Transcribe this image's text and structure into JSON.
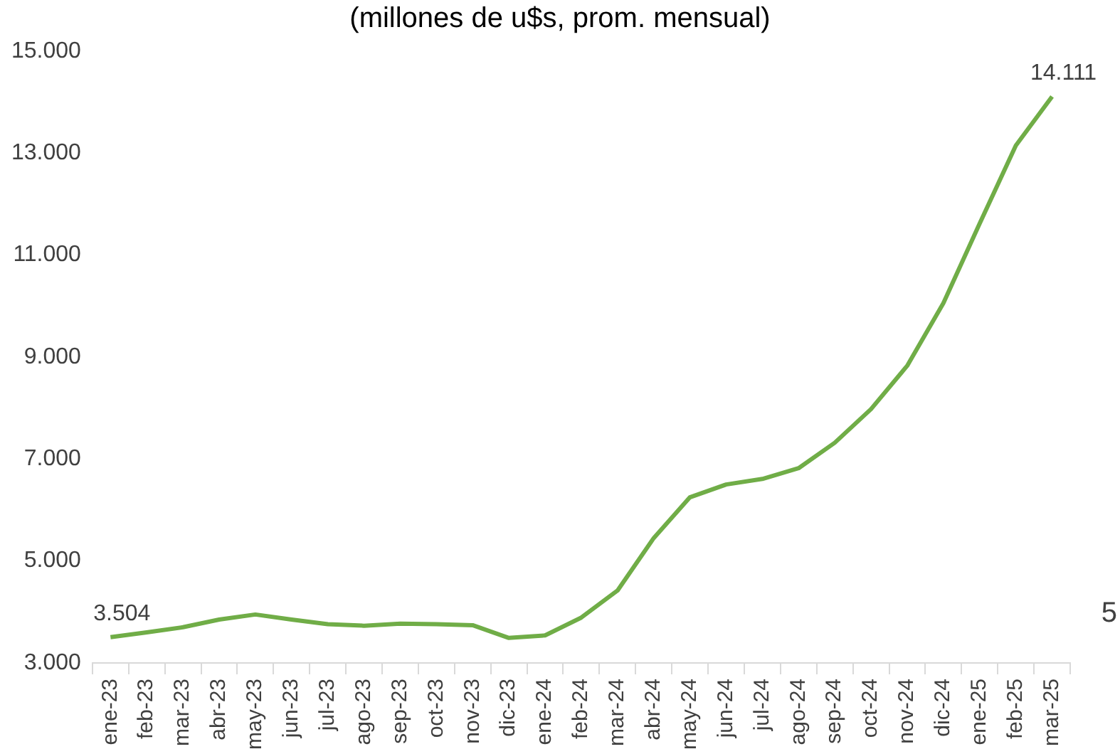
{
  "chart_data": {
    "type": "line",
    "title": "(millones de u$s, prom. mensual)",
    "categories": [
      "ene-23",
      "feb-23",
      "mar-23",
      "abr-23",
      "may-23",
      "jun-23",
      "jul-23",
      "ago-23",
      "sep-23",
      "oct-23",
      "nov-23",
      "dic-23",
      "ene-24",
      "feb-24",
      "mar-24",
      "abr-24",
      "may-24",
      "jun-24",
      "jul-24",
      "ago-24",
      "sep-24",
      "oct-24",
      "nov-24",
      "dic-24",
      "ene-25",
      "feb-25",
      "mar-25"
    ],
    "series": [
      {
        "color": "#70ad47",
        "values": [
          3504,
          3600,
          3700,
          3850,
          3950,
          3850,
          3760,
          3730,
          3770,
          3760,
          3740,
          3490,
          3540,
          3890,
          4420,
          5450,
          6250,
          6500,
          6610,
          6820,
          7320,
          7980,
          8830,
          10060,
          11620,
          13150,
          14111
        ],
        "value_labels": [
          "3.504",
          null,
          null,
          null,
          null,
          null,
          null,
          null,
          null,
          null,
          null,
          null,
          null,
          null,
          null,
          null,
          null,
          null,
          null,
          null,
          null,
          null,
          null,
          null,
          null,
          null,
          "14.111"
        ]
      }
    ],
    "ylim": [
      3000,
      15000
    ],
    "yticks": [
      {
        "value": 3000,
        "label": "3.000"
      },
      {
        "value": 5000,
        "label": "5.000"
      },
      {
        "value": 7000,
        "label": "7.000"
      },
      {
        "value": 9000,
        "label": "9.000"
      },
      {
        "value": 11000,
        "label": "11.000"
      },
      {
        "value": 13000,
        "label": "13.000"
      },
      {
        "value": 15000,
        "label": "15.000"
      }
    ],
    "grid": false,
    "legend": false,
    "marker": "none",
    "line_style": "solid",
    "annotations": [
      "5"
    ]
  }
}
